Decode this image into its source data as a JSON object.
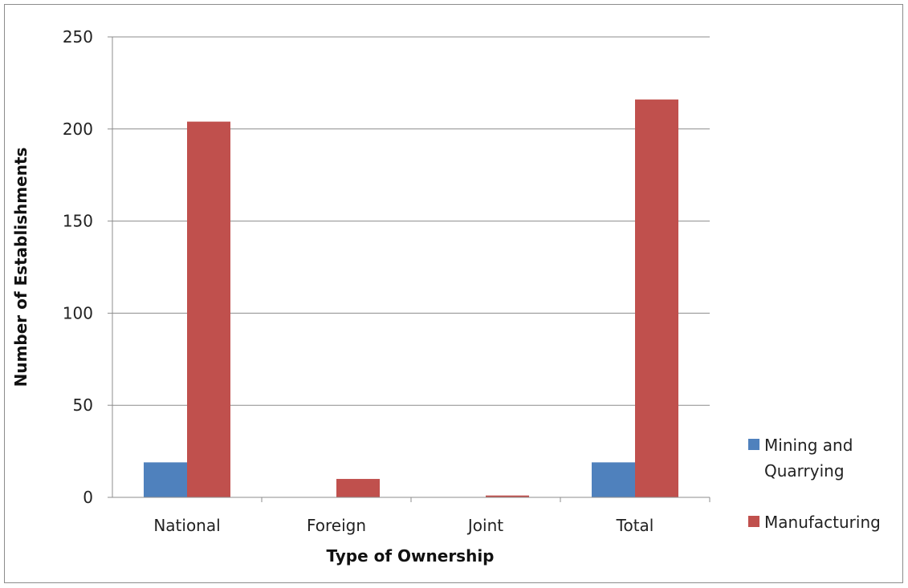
{
  "chart_data": {
    "type": "bar",
    "categories": [
      "National",
      "Foreign",
      "Joint",
      "Total"
    ],
    "series": [
      {
        "name": "Mining and Quarrying",
        "legend_lines": [
          "Mining and",
          "Quarrying"
        ],
        "values": [
          19,
          0,
          0,
          19
        ],
        "color": "#4f81bd"
      },
      {
        "name": "Manufacturing",
        "legend_lines": [
          "Manufacturing"
        ],
        "values": [
          204,
          10,
          1,
          216
        ],
        "color": "#c0504d"
      }
    ],
    "xlabel": "Type of Ownership",
    "ylabel": "Number of Establishments",
    "ylim": [
      0,
      250
    ],
    "yticks": [
      "0",
      "50",
      "100",
      "150",
      "200",
      "250"
    ],
    "grid": true,
    "legend_position": "right"
  }
}
